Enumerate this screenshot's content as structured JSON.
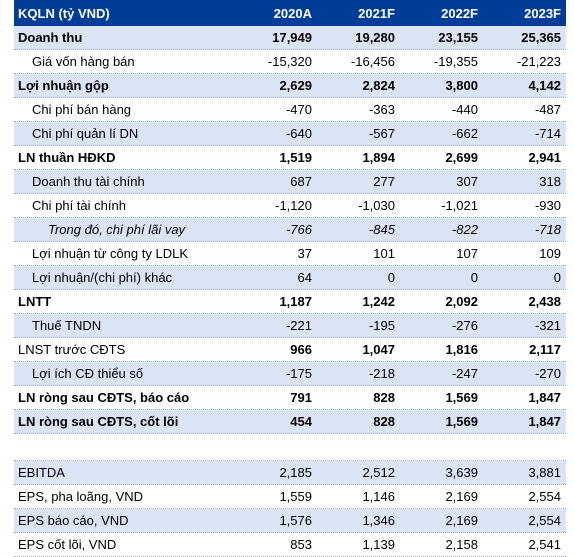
{
  "header": [
    "KQLN (tỷ VND)",
    "2020A",
    "2021F",
    "2022F",
    "2023F"
  ],
  "rows": [
    {
      "label": "Doanh thu",
      "v": [
        "17,949",
        "19,280",
        "23,155",
        "25,365"
      ]
    },
    {
      "label": "Giá vốn hàng bán",
      "v": [
        "-15,320",
        "-16,456",
        "-19,355",
        "-21,223"
      ]
    },
    {
      "label": "Lợi nhuận gộp",
      "v": [
        "2,629",
        "2,824",
        "3,800",
        "4,142"
      ]
    },
    {
      "label": "Chi phí bán hàng",
      "v": [
        "-470",
        "-363",
        "-440",
        "-487"
      ]
    },
    {
      "label": "Chi phí quản lí DN",
      "v": [
        "-640",
        "-567",
        "-662",
        "-714"
      ]
    },
    {
      "label": "LN thuần HĐKD",
      "v": [
        "1,519",
        "1,894",
        "2,699",
        "2,941"
      ]
    },
    {
      "label": "Doanh thu tài chính",
      "v": [
        "687",
        "277",
        "307",
        "318"
      ]
    },
    {
      "label": "Chi phí tài chính",
      "v": [
        "-1,120",
        "-1,030",
        "-1,021",
        "-930"
      ]
    },
    {
      "label": "Trong đó, chi phí lãi vay",
      "v": [
        "-766",
        "-845",
        "-822",
        "-718"
      ]
    },
    {
      "label": "Lợi nhuận từ công ty LDLK",
      "v": [
        "37",
        "101",
        "107",
        "109"
      ]
    },
    {
      "label": "Lợi nhuận/(chi phí) khác",
      "v": [
        "64",
        "0",
        "0",
        "0"
      ]
    },
    {
      "label": "LNTT",
      "v": [
        "1,187",
        "1,242",
        "2,092",
        "2,438"
      ]
    },
    {
      "label": "Thuế TNDN",
      "v": [
        "-221",
        "-195",
        "-276",
        "-321"
      ]
    },
    {
      "label": "LNST trước CĐTS",
      "v": [
        "966",
        "1,047",
        "1,816",
        "2,117"
      ]
    },
    {
      "label": "Lợi ích CĐ thiểu số",
      "v": [
        "-175",
        "-218",
        "-247",
        "-270"
      ]
    },
    {
      "label": "LN ròng sau CĐTS, báo cáo",
      "v": [
        "791",
        "828",
        "1,569",
        "1,847"
      ]
    },
    {
      "label": "LN ròng sau CĐTS, cốt lõi",
      "v": [
        "454",
        "828",
        "1,569",
        "1,847"
      ]
    }
  ],
  "rows2": [
    {
      "label": "EBITDA",
      "v": [
        "2,185",
        "2,512",
        "3,639",
        "3,881"
      ]
    },
    {
      "label": "EPS, pha loãng, VND",
      "v": [
        "1,559",
        "1,146",
        "2,169",
        "2,554"
      ]
    },
    {
      "label": "EPS báo cáo, VND",
      "v": [
        "1,576",
        "1,346",
        "2,169",
        "2,554"
      ]
    },
    {
      "label": "EPS cốt lõi, VND",
      "v": [
        "853",
        "1,139",
        "2,158",
        "2,541"
      ]
    }
  ],
  "colors": {
    "header_bg": "#003d99",
    "light_row": "#dbe4f4"
  }
}
